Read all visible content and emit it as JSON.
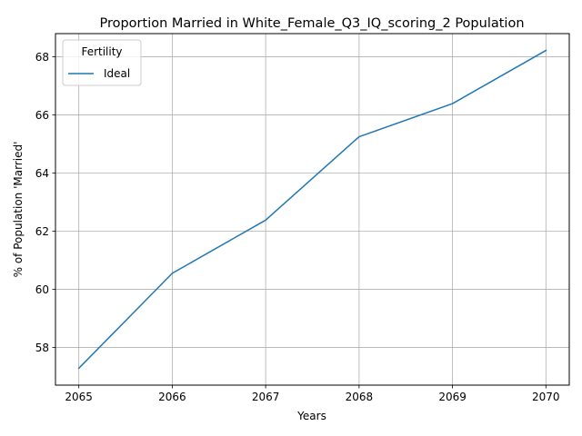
{
  "chart_data": {
    "type": "line",
    "title": "Proportion Married in White_Female_Q3_IQ_scoring_2 Population",
    "xlabel": "Years",
    "ylabel": "% of Population 'Married'",
    "x": [
      2065,
      2066,
      2067,
      2068,
      2069,
      2070
    ],
    "x_tick_labels": [
      "2065",
      "2066",
      "2067",
      "2068",
      "2069",
      "2070"
    ],
    "y_ticks": [
      58,
      60,
      62,
      64,
      66,
      68
    ],
    "y_tick_labels": [
      "58",
      "60",
      "62",
      "64",
      "66",
      "68"
    ],
    "xlim": [
      2064.75,
      2070.25
    ],
    "ylim": [
      56.7,
      68.8
    ],
    "grid": true,
    "legend": {
      "title": "Fertility",
      "placement": "upper-left"
    },
    "series": [
      {
        "name": "Ideal",
        "color": "#1f77b4",
        "values": [
          57.28,
          60.55,
          62.38,
          65.25,
          66.39,
          68.22
        ]
      }
    ]
  }
}
